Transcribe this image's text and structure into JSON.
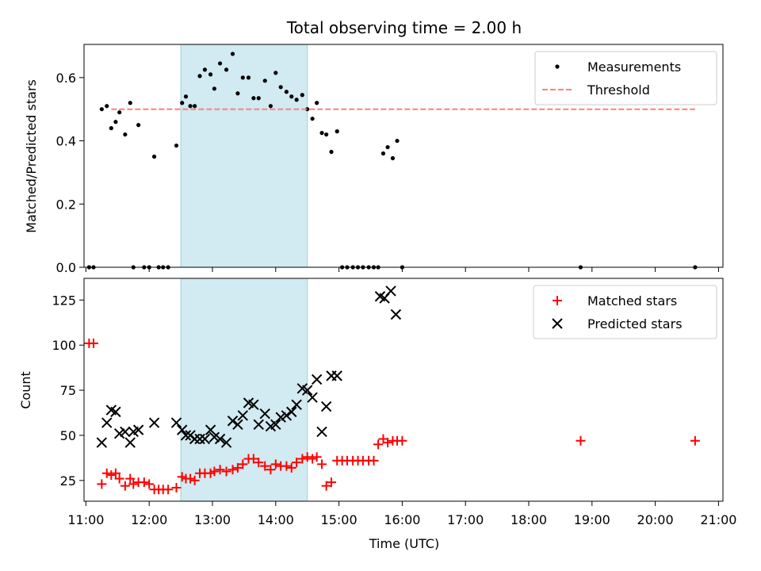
{
  "chart_data": [
    {
      "type": "scatter",
      "title": "Total observing time = 2.00 h",
      "xlabel": "",
      "ylabel": "Matched/Predicted stars",
      "xlim": [
        10.97,
        21.07
      ],
      "ylim": [
        0,
        0.705
      ],
      "yticks": [
        0.0,
        0.2,
        0.4,
        0.6
      ],
      "ytick_labels": [
        "0.0",
        "0.2",
        "0.4",
        "0.6"
      ],
      "xticks": [
        11,
        12,
        13,
        14,
        15,
        16,
        17,
        18,
        19,
        20,
        21
      ],
      "xtick_labels": [
        "",
        "",
        "",
        "",
        "",
        "",
        "",
        "",
        "",
        "",
        ""
      ],
      "highlight_span": [
        12.5,
        14.5
      ],
      "highlight_color": "#add8e6",
      "legend": {
        "placement": "top-right"
      },
      "series": [
        {
          "name": "Measurements",
          "kind": "dot",
          "color": "#000000",
          "x": [
            11.05,
            11.12,
            11.25,
            11.33,
            11.4,
            11.47,
            11.53,
            11.62,
            11.7,
            11.75,
            11.83,
            11.92,
            12.0,
            12.08,
            12.15,
            12.22,
            12.3,
            12.43,
            12.52,
            12.58,
            12.65,
            12.72,
            12.8,
            12.88,
            12.97,
            13.03,
            13.12,
            13.22,
            13.32,
            13.4,
            13.48,
            13.57,
            13.65,
            13.73,
            13.83,
            13.92,
            14.0,
            14.08,
            14.17,
            14.25,
            14.33,
            14.42,
            14.5,
            14.58,
            14.65,
            14.73,
            14.8,
            14.88,
            14.97,
            15.05,
            15.13,
            15.22,
            15.3,
            15.38,
            15.47,
            15.55,
            15.62,
            15.7,
            15.77,
            15.85,
            15.92,
            16.0,
            18.82,
            20.63
          ],
          "y": [
            0.0,
            0.0,
            0.5,
            0.51,
            0.44,
            0.46,
            0.49,
            0.42,
            0.52,
            0.0,
            0.45,
            0.0,
            0.0,
            0.35,
            0.0,
            0.0,
            0.0,
            0.385,
            0.52,
            0.54,
            0.51,
            0.51,
            0.605,
            0.625,
            0.61,
            0.565,
            0.645,
            0.625,
            0.675,
            0.55,
            0.6,
            0.6,
            0.535,
            0.535,
            0.59,
            0.51,
            0.615,
            0.57,
            0.555,
            0.54,
            0.53,
            0.545,
            0.5,
            0.47,
            0.52,
            0.425,
            0.42,
            0.365,
            0.43,
            0.0,
            0.0,
            0.0,
            0.0,
            0.0,
            0.0,
            0.0,
            0.0,
            0.36,
            0.38,
            0.345,
            0.4,
            0.0,
            0.0,
            0.0
          ]
        },
        {
          "name": "Threshold",
          "kind": "dashed-line",
          "color": "#ff7f7f",
          "x": [
            11.4,
            20.63
          ],
          "y": [
            0.5,
            0.5
          ]
        }
      ]
    },
    {
      "type": "scatter",
      "title": "",
      "xlabel": "Time (UTC)",
      "ylabel": "Count",
      "xlim": [
        10.97,
        21.07
      ],
      "ylim": [
        13.5,
        137
      ],
      "yticks": [
        25,
        50,
        75,
        100,
        125
      ],
      "ytick_labels": [
        "25",
        "50",
        "75",
        "100",
        "125"
      ],
      "xticks": [
        11,
        12,
        13,
        14,
        15,
        16,
        17,
        18,
        19,
        20,
        21
      ],
      "xtick_labels": [
        "11:00",
        "12:00",
        "13:00",
        "14:00",
        "15:00",
        "16:00",
        "17:00",
        "18:00",
        "19:00",
        "20:00",
        "21:00"
      ],
      "highlight_span": [
        12.5,
        14.5
      ],
      "highlight_color": "#add8e6",
      "legend": {
        "placement": "top-right"
      },
      "series": [
        {
          "name": "Matched stars",
          "kind": "plus",
          "color": "#ff0000",
          "x": [
            11.05,
            11.12,
            11.25,
            11.33,
            11.4,
            11.47,
            11.53,
            11.62,
            11.7,
            11.75,
            11.83,
            11.92,
            12.0,
            12.08,
            12.15,
            12.22,
            12.3,
            12.43,
            12.52,
            12.58,
            12.65,
            12.72,
            12.8,
            12.88,
            12.97,
            13.03,
            13.12,
            13.22,
            13.32,
            13.4,
            13.48,
            13.57,
            13.65,
            13.73,
            13.83,
            13.92,
            14.0,
            14.08,
            14.17,
            14.25,
            14.33,
            14.42,
            14.5,
            14.58,
            14.65,
            14.73,
            14.8,
            14.88,
            14.97,
            15.05,
            15.13,
            15.22,
            15.3,
            15.38,
            15.47,
            15.55,
            15.62,
            15.7,
            15.77,
            15.85,
            15.92,
            16.0,
            18.82,
            20.63
          ],
          "y": [
            101,
            101,
            23,
            29,
            28,
            29,
            26,
            22,
            26,
            23,
            24,
            24,
            23,
            20,
            20,
            20,
            20,
            21,
            27,
            26,
            26,
            25,
            29,
            29,
            29,
            30,
            31,
            30,
            31,
            32,
            34,
            37,
            37,
            35,
            33,
            31,
            34,
            33,
            33,
            32,
            35,
            37,
            38,
            37,
            38,
            34,
            22,
            24,
            36,
            36,
            36,
            36,
            36,
            36,
            36,
            36,
            45,
            48,
            46,
            47,
            47,
            47,
            47,
            47
          ]
        },
        {
          "name": "Predicted stars",
          "kind": "cross",
          "color": "#000000",
          "x": [
            11.25,
            11.33,
            11.4,
            11.47,
            11.53,
            11.62,
            11.7,
            11.75,
            11.83,
            12.08,
            12.43,
            12.52,
            12.58,
            12.65,
            12.72,
            12.8,
            12.88,
            12.97,
            13.03,
            13.12,
            13.22,
            13.32,
            13.4,
            13.48,
            13.57,
            13.65,
            13.73,
            13.83,
            13.92,
            14.0,
            14.08,
            14.17,
            14.25,
            14.33,
            14.42,
            14.5,
            14.58,
            14.65,
            14.73,
            14.8,
            14.88,
            14.97,
            15.65,
            15.72,
            15.82,
            15.9
          ],
          "y": [
            46,
            57,
            64,
            63,
            51,
            52,
            46,
            52,
            53,
            57,
            57,
            53,
            50,
            50,
            48,
            48,
            48,
            53,
            49,
            48,
            46,
            58,
            56,
            61,
            68,
            67,
            56,
            62,
            55,
            56,
            60,
            61,
            63,
            67,
            76,
            75,
            71,
            81,
            52,
            66,
            83,
            83,
            127,
            126,
            130,
            117
          ]
        }
      ]
    }
  ]
}
